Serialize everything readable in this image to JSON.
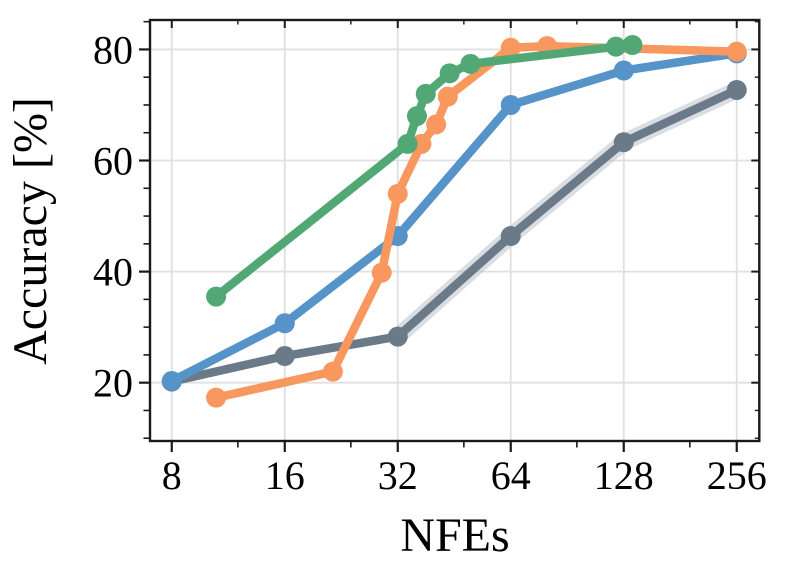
{
  "chart_data": {
    "type": "line",
    "title": "",
    "xlabel": "NFEs",
    "ylabel": "Accuracy [%]",
    "x_scale": "log2",
    "xlim": [
      7,
      294
    ],
    "ylim": [
      9.5,
      85.3
    ],
    "grid": "major",
    "x_ticks": [
      8,
      16,
      32,
      64,
      128,
      256
    ],
    "x_minor_ticks": [
      12,
      24,
      48,
      96,
      192
    ],
    "y_ticks": [
      20,
      40,
      60,
      80
    ],
    "y_minor_ticks": [
      10,
      15,
      25,
      30,
      35,
      45,
      50,
      55,
      65,
      70,
      75,
      85
    ],
    "colors": {
      "grid": "#e0e0e0",
      "spine": "#1a1a1a",
      "band": "rgba(173,181,192,0.45)"
    },
    "series": [
      {
        "name": "gray",
        "color": "#6b7a89",
        "band_start_x": 32,
        "points": [
          [
            8,
            20.2
          ],
          [
            16,
            24.8
          ],
          [
            32,
            28.3
          ],
          [
            64,
            46.4
          ],
          [
            128,
            63.3
          ],
          [
            256,
            72.7
          ]
        ]
      },
      {
        "name": "blue",
        "color": "#5593c8",
        "points": [
          [
            8,
            20.3
          ],
          [
            16,
            30.7
          ],
          [
            32,
            46.4
          ],
          [
            64,
            70.0
          ],
          [
            128,
            76.2
          ],
          [
            256,
            79.3
          ]
        ]
      },
      {
        "name": "orange",
        "color": "#f8985f",
        "points": [
          [
            10.5,
            17.3
          ],
          [
            21.5,
            22.0
          ],
          [
            29,
            39.8
          ],
          [
            32,
            54.0
          ],
          [
            37,
            63.0
          ],
          [
            40.5,
            66.5
          ],
          [
            43.5,
            71.5
          ],
          [
            64,
            80.3
          ],
          [
            80,
            80.6
          ],
          [
            256,
            79.6
          ]
        ]
      },
      {
        "name": "green",
        "color": "#52a874",
        "points": [
          [
            10.5,
            35.5
          ],
          [
            34,
            63.0
          ],
          [
            36,
            68.0
          ],
          [
            38,
            72.0
          ],
          [
            44,
            75.7
          ],
          [
            50,
            77.4
          ],
          [
            122,
            80.5
          ],
          [
            135,
            80.8
          ]
        ]
      }
    ]
  }
}
